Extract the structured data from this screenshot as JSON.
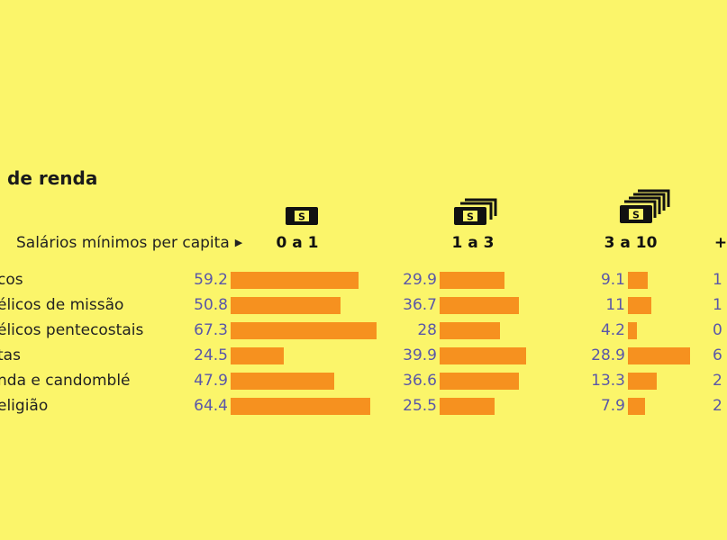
{
  "title": "de renda",
  "scale_label": "Salários mínimos per capita",
  "colors": {
    "background": "#fbf56a",
    "bar": "#f6911f",
    "value_text": "#5a57a8",
    "text": "#222222"
  },
  "icons": [
    "banknote-1-icon",
    "banknote-2-icon",
    "banknote-3-icon"
  ],
  "chart_data": {
    "type": "bar",
    "title": "de renda",
    "categories": [
      "cos",
      "élicos de missão",
      "élicos pentecostais",
      "tas",
      "nda e candomblé",
      "eligião"
    ],
    "series": [
      {
        "name": "0 a 1",
        "values": [
          59.2,
          50.8,
          67.3,
          24.5,
          47.9,
          64.4
        ]
      },
      {
        "name": "1 a 3",
        "values": [
          29.9,
          36.7,
          28,
          39.9,
          36.6,
          25.5
        ]
      },
      {
        "name": "3 a 10",
        "values": [
          9.1,
          11,
          4.2,
          28.9,
          13.3,
          7.9
        ]
      },
      {
        "name": "+",
        "values": [
          "1",
          "1",
          "0",
          "6",
          "2",
          "2"
        ]
      }
    ],
    "ylim": [
      0,
      100
    ]
  }
}
